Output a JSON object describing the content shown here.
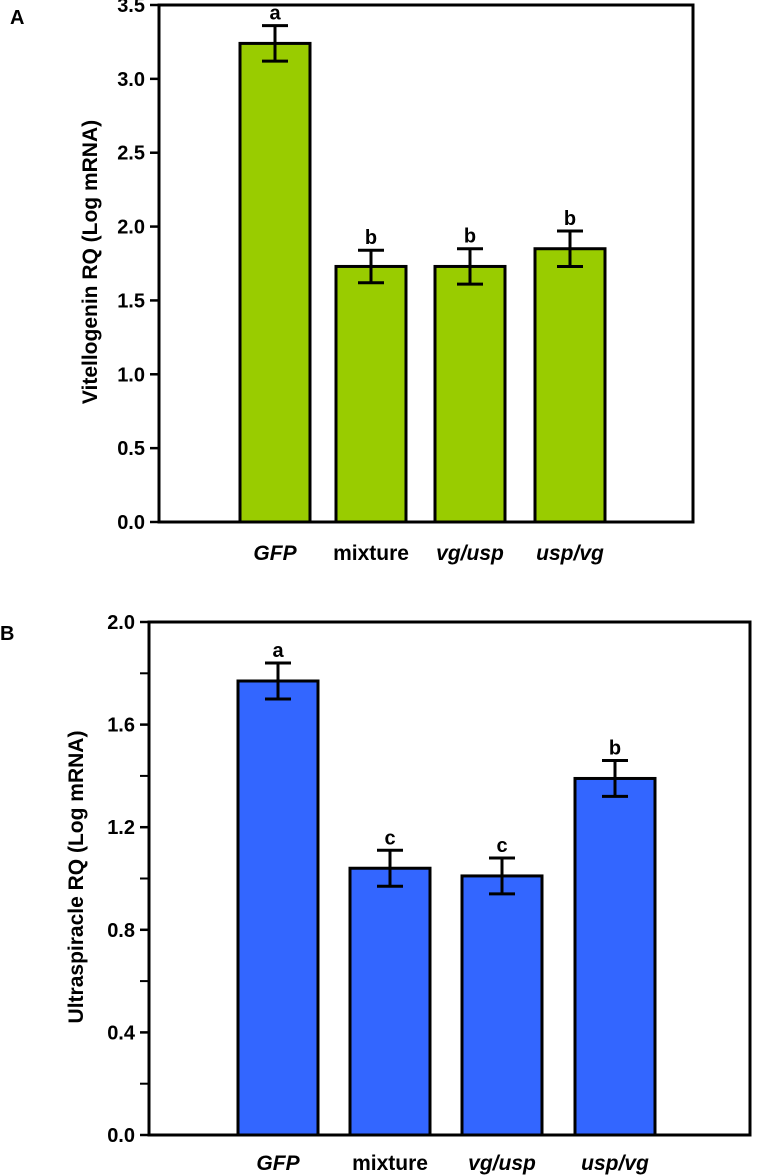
{
  "chart_data": [
    {
      "type": "bar",
      "panel": "A",
      "categories": [
        "GFP",
        "mixture",
        "vg/usp",
        "usp/vg"
      ],
      "category_italic": [
        true,
        false,
        true,
        true
      ],
      "values": [
        3.24,
        1.73,
        1.73,
        1.85
      ],
      "error": [
        0.12,
        0.11,
        0.12,
        0.12
      ],
      "significance": [
        "a",
        "b",
        "b",
        "b"
      ],
      "ylabel": "Vitellogenin RQ (Log mRNA)",
      "xlabel": "",
      "ylim": [
        0,
        3.5
      ],
      "yticks": [
        0.0,
        0.5,
        1.0,
        1.5,
        2.0,
        2.5,
        3.0,
        3.5
      ],
      "ytick_labels": [
        "0.0",
        "0.5",
        "1.0",
        "1.5",
        "2.0",
        "2.5",
        "3.0",
        "3.5"
      ],
      "color": "#99CC00"
    },
    {
      "type": "bar",
      "panel": "B",
      "categories": [
        "GFP",
        "mixture",
        "vg/usp",
        "usp/vg"
      ],
      "category_italic": [
        true,
        false,
        true,
        true
      ],
      "values": [
        1.77,
        1.04,
        1.01,
        1.39
      ],
      "error": [
        0.07,
        0.07,
        0.07,
        0.07
      ],
      "significance": [
        "a",
        "c",
        "c",
        "b"
      ],
      "ylabel": "Ultraspiracle RQ (Log mRNA)",
      "xlabel": "",
      "ylim": [
        0,
        2.0
      ],
      "yticks": [
        0.0,
        0.4,
        0.8,
        1.2,
        1.6,
        2.0
      ],
      "ytick_labels": [
        "0.0",
        "0.4",
        "0.8",
        "1.2",
        "1.6",
        "2.0"
      ],
      "minor_yticks": [
        0.2,
        0.6,
        1.0,
        1.4,
        1.8
      ],
      "color": "#3366FF"
    }
  ]
}
